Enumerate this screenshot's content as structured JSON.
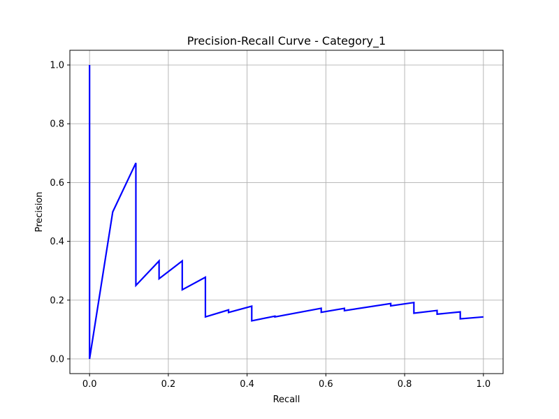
{
  "chart_data": {
    "type": "line",
    "title": "Precision-Recall Curve - Category_1",
    "xlabel": "Recall",
    "ylabel": "Precision",
    "xlim": [
      -0.05,
      1.05
    ],
    "ylim": [
      -0.05,
      1.05
    ],
    "xticks": [
      0.0,
      0.2,
      0.4,
      0.6,
      0.8,
      1.0
    ],
    "yticks": [
      0.0,
      0.2,
      0.4,
      0.6,
      0.8,
      1.0
    ],
    "xtick_labels": [
      "0.0",
      "0.2",
      "0.4",
      "0.6",
      "0.8",
      "1.0"
    ],
    "ytick_labels": [
      "0.0",
      "0.2",
      "0.4",
      "0.6",
      "0.8",
      "1.0"
    ],
    "grid": true,
    "legend": "none",
    "series": [
      {
        "color": "#0000ff",
        "x": [
          0.0,
          0.0,
          0.0588,
          0.1176,
          0.1176,
          0.1765,
          0.1765,
          0.2353,
          0.2353,
          0.2941,
          0.2941,
          0.3529,
          0.3529,
          0.4118,
          0.4118,
          0.4706,
          0.4706,
          0.5882,
          0.5882,
          0.6471,
          0.6471,
          0.7647,
          0.7647,
          0.8235,
          0.8235,
          0.8824,
          0.8824,
          0.9412,
          0.9412,
          1.0
        ],
        "y": [
          1.0,
          0.0,
          0.5,
          0.6667,
          0.25,
          0.3333,
          0.2727,
          0.3333,
          0.2353,
          0.2778,
          0.1429,
          0.1667,
          0.1579,
          0.1795,
          0.1296,
          0.1455,
          0.1429,
          0.1724,
          0.1587,
          0.1719,
          0.1642,
          0.1884,
          0.1806,
          0.1918,
          0.1556,
          0.1648,
          0.1522,
          0.16,
          0.1364,
          0.1429
        ]
      }
    ]
  }
}
